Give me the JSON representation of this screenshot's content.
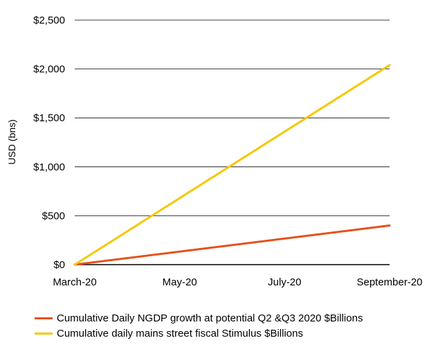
{
  "chart_data": {
    "type": "line",
    "xlabel": "",
    "ylabel": "USD (bns)",
    "x_ticks": [
      "March-20",
      "May-20",
      "July-20",
      "September-20"
    ],
    "y_ticks": [
      "$0",
      "$500",
      "$1,000",
      "$1,500",
      "$2,000",
      "$2,500"
    ],
    "ylim": [
      0,
      2500
    ],
    "x_range": [
      "March-20",
      "September-20"
    ],
    "grid": true,
    "legend_position": "bottom-left",
    "series": [
      {
        "name": "Cumulative Daily NGDP growth at potential Q2 &Q3 2020 $Billions",
        "color": "#e8501a",
        "points": [
          {
            "x": "March-20",
            "y": 0
          },
          {
            "x": "September-20",
            "y": 400
          }
        ]
      },
      {
        "name": "Cumulative daily mains street fiscal Stimulus $Billions",
        "color": "#f5c800",
        "points": [
          {
            "x": "March-20",
            "y": 0
          },
          {
            "x": "September-20",
            "y": 2040
          }
        ]
      }
    ]
  }
}
